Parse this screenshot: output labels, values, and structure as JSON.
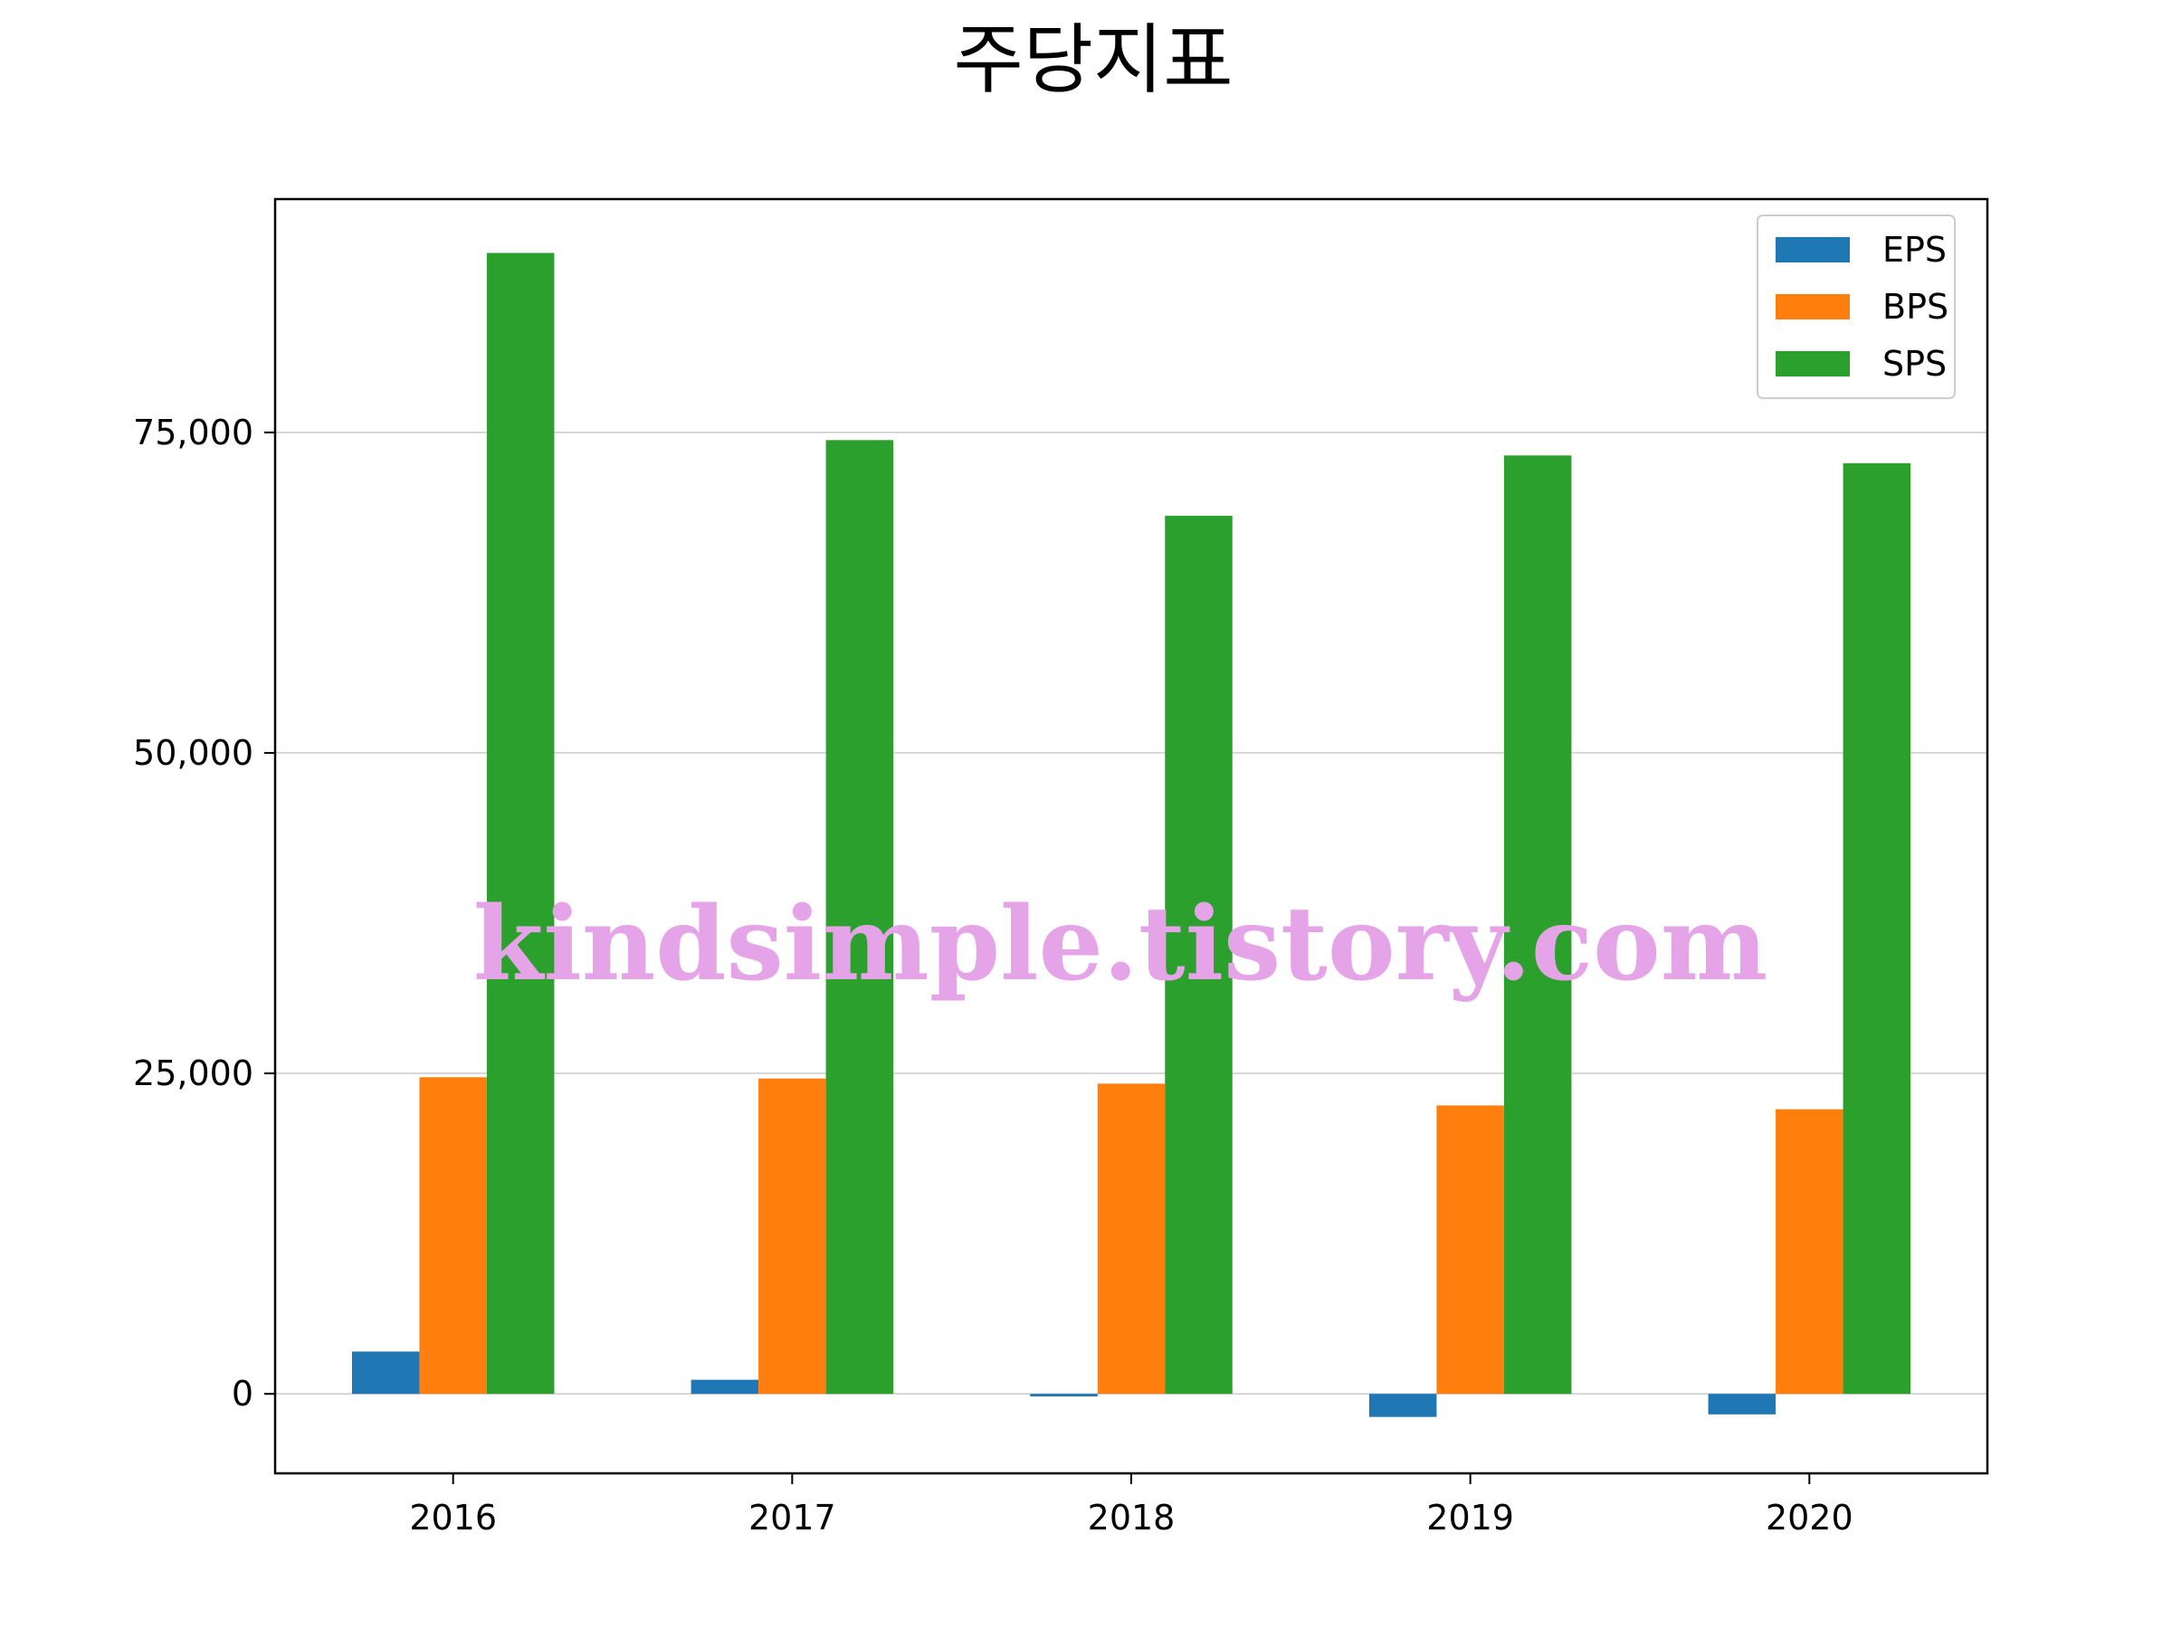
{
  "chart_data": {
    "type": "bar",
    "title": "주당지표",
    "xlabel": "",
    "ylabel": "",
    "categories": [
      "2016",
      "2017",
      "2018",
      "2019",
      "2020"
    ],
    "series": [
      {
        "name": "EPS",
        "color": "#1f77b4",
        "values": [
          3300,
          1100,
          -200,
          -1800,
          -1600
        ]
      },
      {
        "name": "BPS",
        "color": "#ff7f0e",
        "values": [
          24700,
          24600,
          24200,
          22500,
          22200
        ]
      },
      {
        "name": "SPS",
        "color": "#2ca02c",
        "values": [
          89000,
          74400,
          68500,
          73200,
          72600
        ]
      }
    ],
    "ylim": [
      -6200,
      93200
    ],
    "yticks": [
      0,
      25000,
      50000,
      75000
    ],
    "ytick_labels": [
      "0",
      "25,000",
      "50,000",
      "75,000"
    ],
    "grid": "horizontal",
    "legend_position": "top-right"
  },
  "watermark": "kindsimple.tistory.com"
}
